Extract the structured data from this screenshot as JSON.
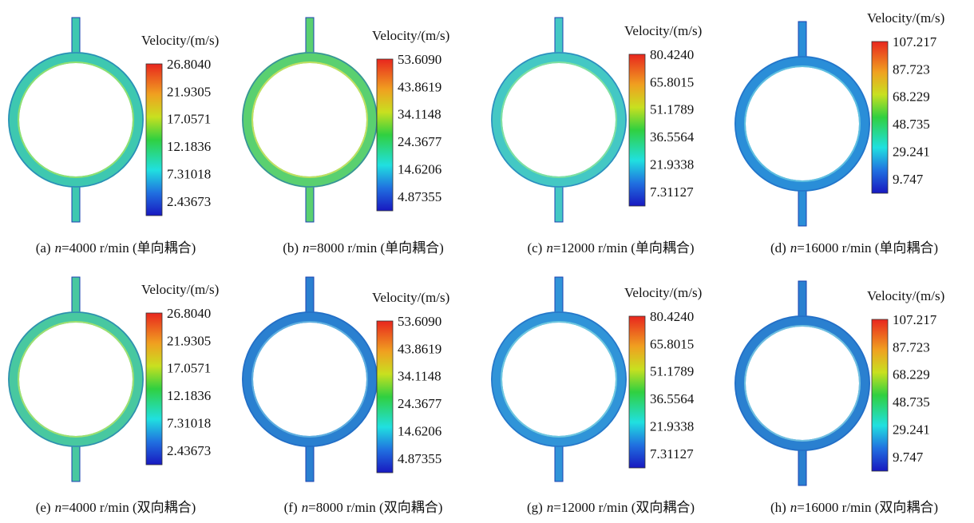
{
  "panels": [
    {
      "legend_title": "Velocity/(m/s)",
      "ticks": [
        "26.8040",
        "21.9305",
        "17.0571",
        "12.1836",
        "7.31018",
        "2.43673"
      ],
      "caption": {
        "label": "(a)",
        "var": "n",
        "text": "=4000 r/min (单向耦合)"
      }
    },
    {
      "legend_title": "Velocity/(m/s)",
      "ticks": [
        "53.6090",
        "43.8619",
        "34.1148",
        "24.3677",
        "14.6206",
        "4.87355"
      ],
      "caption": {
        "label": "(b)",
        "var": "n",
        "text": "=8000 r/min (单向耦合)"
      }
    },
    {
      "legend_title": "Velocity/(m/s)",
      "ticks": [
        "80.4240",
        "65.8015",
        "51.1789",
        "36.5564",
        "21.9338",
        "7.31127"
      ],
      "caption": {
        "label": "(c)",
        "var": "n",
        "text": "=12000 r/min (单向耦合)"
      }
    },
    {
      "legend_title": "Velocity/(m/s)",
      "ticks": [
        "107.217",
        "87.723",
        "68.229",
        "48.735",
        "29.241",
        "9.747"
      ],
      "caption": {
        "label": "(d)",
        "var": "n",
        "text": "=16000 r/min (单向耦合)"
      }
    },
    {
      "legend_title": "Velocity/(m/s)",
      "ticks": [
        "26.8040",
        "21.9305",
        "17.0571",
        "12.1836",
        "7.31018",
        "2.43673"
      ],
      "caption": {
        "label": "(e)",
        "var": "n",
        "text": "=4000 r/min (双向耦合)"
      }
    },
    {
      "legend_title": "Velocity/(m/s)",
      "ticks": [
        "53.6090",
        "43.8619",
        "34.1148",
        "24.3677",
        "14.6206",
        "4.87355"
      ],
      "caption": {
        "label": "(f)",
        "var": "n",
        "text": "=8000 r/min (双向耦合)"
      }
    },
    {
      "legend_title": "Velocity/(m/s)",
      "ticks": [
        "80.4240",
        "65.8015",
        "51.1789",
        "36.5564",
        "21.9338",
        "7.31127"
      ],
      "caption": {
        "label": "(g)",
        "var": "n",
        "text": "=12000 r/min (双向耦合)"
      }
    },
    {
      "legend_title": "Velocity/(m/s)",
      "ticks": [
        "107.217",
        "87.723",
        "68.229",
        "48.735",
        "29.241",
        "9.747"
      ],
      "caption": {
        "label": "(h)",
        "var": "n",
        "text": "=16000 r/min (双向耦合)"
      }
    }
  ]
}
